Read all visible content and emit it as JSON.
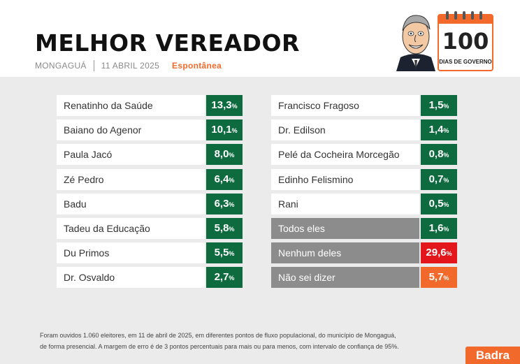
{
  "header": {
    "title": "MELHOR VEREADOR",
    "city": "MONGAGUÁ",
    "date": "11 ABRIL 2025",
    "mode": "Espontânea"
  },
  "badge": {
    "number": "100",
    "caption": "DIAS DE GOVERNO"
  },
  "chart_data": {
    "type": "table",
    "unit": "%",
    "left": [
      {
        "name": "Renatinho da Saúde",
        "value": "13,3"
      },
      {
        "name": "Baiano do Agenor",
        "value": "10,1"
      },
      {
        "name": "Paula Jacó",
        "value": "8,0"
      },
      {
        "name": "Zé Pedro",
        "value": "6,4"
      },
      {
        "name": "Badu",
        "value": "6,3"
      },
      {
        "name": "Tadeu da Educação",
        "value": "5,8"
      },
      {
        "name": "Du Primos",
        "value": "5,5"
      },
      {
        "name": "Dr. Osvaldo",
        "value": "2,7"
      }
    ],
    "right": [
      {
        "name": "Francisco Fragoso",
        "value": "1,5"
      },
      {
        "name": "Dr. Edilson",
        "value": "1,4"
      },
      {
        "name": "Pelé da Cocheira Morcegão",
        "value": "0,8"
      },
      {
        "name": "Edinho Felismino",
        "value": "0,7"
      },
      {
        "name": "Rani",
        "value": "0,5"
      },
      {
        "name": "Todos eles",
        "value": "1,6",
        "style": "grey"
      },
      {
        "name": "Nenhum deles",
        "value": "29,6",
        "style": "red"
      },
      {
        "name": "Não sei dizer",
        "value": "5,7",
        "style": "orange"
      }
    ]
  },
  "colors": {
    "green": "#0e6b3f",
    "red": "#e3161b",
    "orange": "#f26a2b",
    "grey": "#8c8c8c"
  },
  "footnote": {
    "line1": "Foram ouvidos 1.060 eleitores, em 11 de abril de 2025, em diferentes pontos de fluxo populacional, do município de Mongaguá,",
    "line2": "de forma presencial. A margem de erro é de 3 pontos percentuais para mais ou para menos, com intervalo de confiança de 95%."
  },
  "brand": "Badra"
}
